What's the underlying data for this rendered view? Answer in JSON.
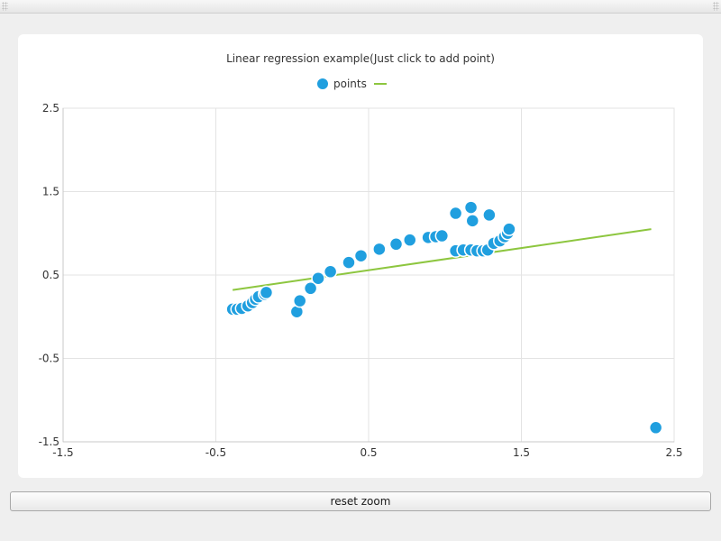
{
  "window": {
    "reset_zoom_label": "reset zoom"
  },
  "chart_data": {
    "type": "scatter",
    "title": "Linear regression example(Just click to add point)",
    "xlabel": "",
    "ylabel": "",
    "xlim": [
      -1.5,
      2.5
    ],
    "ylim": [
      -1.5,
      2.5
    ],
    "xticks": [
      -1.5,
      -0.5,
      0.5,
      1.5,
      2.5
    ],
    "yticks": [
      -1.5,
      -0.5,
      0.5,
      1.5,
      2.5
    ],
    "xtick_labels": [
      "-1.5",
      "-0.5",
      "0.5",
      "1.5",
      "2.5"
    ],
    "ytick_labels": [
      "-1.5",
      "-0.5",
      "0.5",
      "1.5",
      "2.5"
    ],
    "grid": true,
    "legend_position": "top-center",
    "series": [
      {
        "name": "points",
        "kind": "scatter",
        "color": "#209fdf",
        "points": [
          [
            -0.39,
            0.09
          ],
          [
            -0.36,
            0.09
          ],
          [
            -0.33,
            0.1
          ],
          [
            -0.29,
            0.13
          ],
          [
            -0.26,
            0.17
          ],
          [
            -0.24,
            0.21
          ],
          [
            -0.22,
            0.24
          ],
          [
            -0.18,
            0.27
          ],
          [
            -0.17,
            0.29
          ],
          [
            0.03,
            0.06
          ],
          [
            0.05,
            0.19
          ],
          [
            0.12,
            0.34
          ],
          [
            0.17,
            0.46
          ],
          [
            0.25,
            0.54
          ],
          [
            0.37,
            0.65
          ],
          [
            0.45,
            0.73
          ],
          [
            0.57,
            0.81
          ],
          [
            0.68,
            0.87
          ],
          [
            0.77,
            0.92
          ],
          [
            0.89,
            0.95
          ],
          [
            0.94,
            0.96
          ],
          [
            0.98,
            0.97
          ],
          [
            1.07,
            1.24
          ],
          [
            1.17,
            1.31
          ],
          [
            1.18,
            1.15
          ],
          [
            1.29,
            1.22
          ],
          [
            1.07,
            0.79
          ],
          [
            1.12,
            0.8
          ],
          [
            1.17,
            0.8
          ],
          [
            1.21,
            0.79
          ],
          [
            1.25,
            0.79
          ],
          [
            1.28,
            0.8
          ],
          [
            1.32,
            0.88
          ],
          [
            1.36,
            0.91
          ],
          [
            1.39,
            0.96
          ],
          [
            1.41,
            1.0
          ],
          [
            1.42,
            1.05
          ],
          [
            2.38,
            -1.33
          ]
        ]
      },
      {
        "name": "",
        "kind": "line",
        "color": "#8dc63f",
        "points": [
          [
            -0.39,
            0.32
          ],
          [
            2.35,
            1.05
          ]
        ]
      }
    ]
  }
}
